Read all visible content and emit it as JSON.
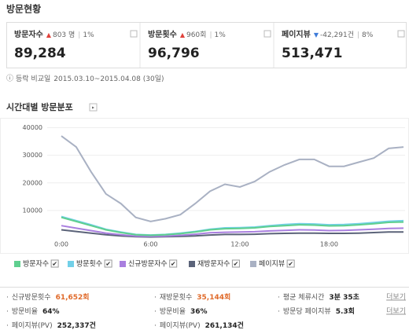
{
  "header": {
    "title": "방문현황"
  },
  "cards": [
    {
      "label": "방문자수",
      "direction": "up",
      "change": "803 명",
      "percent": "1%",
      "value": "89,284"
    },
    {
      "label": "방문횟수",
      "direction": "up",
      "change": "960회",
      "percent": "1%",
      "value": "96,796"
    },
    {
      "label": "페이지뷰",
      "direction": "down",
      "change": "-42,291건",
      "percent": "8%",
      "value": "513,471"
    }
  ],
  "compare": {
    "label": "등락 비교일",
    "period": "2015.03.10~2015.04.08 (30일)"
  },
  "chart_data": {
    "type": "line",
    "title": "시간대별 방문분포",
    "categories": [
      "0:00",
      null,
      null,
      null,
      null,
      null,
      "6:00",
      null,
      null,
      null,
      null,
      null,
      "12:00",
      null,
      null,
      null,
      null,
      null,
      "18:00",
      null,
      null,
      null,
      null,
      null
    ],
    "ylim": [
      0,
      43000
    ],
    "yticks": [
      10000,
      20000,
      30000,
      40000
    ],
    "grid": true,
    "series": [
      {
        "name": "방문자수",
        "color": "#5fcf8f",
        "values": [
          7500,
          6000,
          4500,
          3000,
          2000,
          1200,
          1000,
          1200,
          1600,
          2200,
          3000,
          3400,
          3500,
          3700,
          4200,
          4500,
          4800,
          4700,
          4400,
          4500,
          4800,
          5200,
          5700,
          5800
        ]
      },
      {
        "name": "방문횟수",
        "color": "#72d0e8",
        "values": [
          7800,
          6300,
          4800,
          3200,
          2200,
          1300,
          1100,
          1300,
          1800,
          2400,
          3200,
          3700,
          3800,
          4000,
          4500,
          4900,
          5200,
          5100,
          4800,
          4900,
          5200,
          5600,
          6100,
          6300
        ]
      },
      {
        "name": "신규방문자수",
        "color": "#a97fdf",
        "values": [
          4500,
          3600,
          2700,
          1800,
          1200,
          700,
          600,
          700,
          1000,
          1400,
          1900,
          2100,
          2200,
          2300,
          2600,
          2800,
          3000,
          2900,
          2700,
          2800,
          3000,
          3200,
          3500,
          3600
        ]
      },
      {
        "name": "재방문자수",
        "color": "#5b6379",
        "values": [
          3000,
          2400,
          1800,
          1200,
          800,
          500,
          400,
          500,
          600,
          800,
          1100,
          1300,
          1300,
          1400,
          1600,
          1700,
          1800,
          1800,
          1700,
          1700,
          1800,
          2000,
          2200,
          2200
        ]
      },
      {
        "name": "페이지뷰",
        "color": "#a9b1c3",
        "values": [
          37000,
          33000,
          24000,
          16000,
          12500,
          7500,
          6000,
          7000,
          8500,
          12500,
          17000,
          19500,
          18500,
          20500,
          24000,
          26500,
          28500,
          28500,
          26000,
          26000,
          27500,
          29000,
          32500,
          33000
        ]
      }
    ]
  },
  "stats": [
    [
      {
        "label": "신규방문횟수",
        "value": "61,652회"
      },
      {
        "label": "방문비율",
        "value": "64%"
      },
      {
        "label": "페이지뷰(PV)",
        "value": "252,337건"
      }
    ],
    [
      {
        "label": "재방문횟수",
        "value": "35,144회"
      },
      {
        "label": "방문비율",
        "value": "36%"
      },
      {
        "label": "페이지뷰(PV)",
        "value": "261,134건"
      }
    ],
    [
      {
        "label": "평균 체류시간",
        "value": "3분 35초",
        "more": "더보기"
      },
      {
        "label": "방문당 페이지뷰",
        "value": "5.3회",
        "more": "더보기"
      }
    ]
  ]
}
